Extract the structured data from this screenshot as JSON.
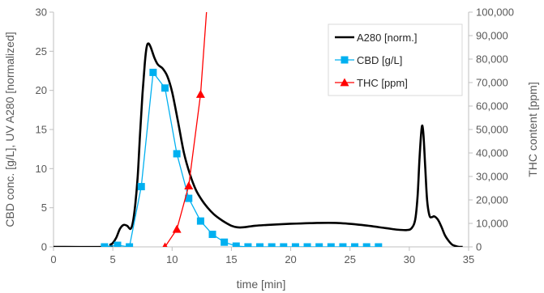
{
  "chart_data": {
    "type": "line",
    "xlabel": "time [min]",
    "ylabel": "CBD conc. [g/L], UV A280 [normalized]",
    "y2label": "THC content [ppm]",
    "xlim": [
      0,
      35
    ],
    "ylim": [
      0,
      30
    ],
    "y2lim": [
      0,
      100000
    ],
    "xticks": [
      "0",
      "5",
      "10",
      "15",
      "20",
      "25",
      "30",
      "35"
    ],
    "yticks": [
      "0",
      "5",
      "10",
      "15",
      "20",
      "25",
      "30"
    ],
    "y2ticks": [
      "0",
      "10,000",
      "20,000",
      "30,000",
      "40,000",
      "50,000",
      "60,000",
      "70,000",
      "80,000",
      "90,000",
      "100,000"
    ],
    "legend_position": "top-right",
    "grid": false,
    "series": [
      {
        "name": "A280 [norm.]",
        "axis": "left",
        "color": "#000000",
        "marker": "none",
        "x": [
          0,
          4.5,
          4.8,
          5.0,
          5.3,
          5.6,
          5.9,
          6.2,
          6.5,
          6.7,
          6.9,
          7.1,
          7.3,
          7.5,
          7.7,
          7.85,
          8.0,
          8.2,
          8.5,
          8.8,
          9.2,
          9.6,
          10.0,
          10.5,
          11.0,
          11.5,
          12.0,
          12.5,
          13.0,
          13.5,
          14.0,
          14.5,
          15.0,
          15.5,
          16.0,
          17.0,
          18.0,
          20.0,
          22.0,
          24.0,
          26.0,
          28.0,
          29.0,
          29.8,
          30.2,
          30.5,
          30.7,
          30.85,
          31.0,
          31.1,
          31.2,
          31.35,
          31.5,
          31.7,
          31.9,
          32.1,
          32.4,
          32.7,
          33.0,
          33.3,
          33.6,
          33.9,
          34.2,
          34.5
        ],
        "y": [
          0,
          0,
          0.3,
          0.5,
          1.2,
          2.3,
          2.8,
          2.7,
          2.3,
          3.2,
          5.5,
          9.0,
          14.5,
          19.5,
          23.5,
          25.5,
          26.0,
          25.5,
          24.2,
          23.3,
          22.8,
          21.8,
          19.8,
          16.0,
          12.0,
          9.3,
          7.3,
          6.0,
          5.0,
          4.2,
          3.6,
          3.1,
          2.7,
          2.5,
          2.5,
          2.7,
          2.8,
          2.95,
          3.05,
          3.05,
          2.8,
          2.4,
          2.2,
          2.15,
          2.4,
          3.5,
          6.5,
          11.0,
          14.5,
          15.5,
          14.2,
          10.0,
          6.0,
          4.0,
          3.8,
          3.9,
          3.5,
          2.6,
          1.5,
          0.8,
          0.3,
          0.1,
          0,
          0
        ]
      },
      {
        "name": "CBD [g/L]",
        "axis": "left",
        "color": "#00B0F0",
        "marker": "square",
        "x": [
          4.3,
          5.4,
          6.4,
          7.4,
          8.4,
          9.4,
          10.4,
          11.4,
          12.4,
          13.4,
          14.4,
          15.4,
          16.4,
          17.4,
          18.4,
          19.4,
          20.4,
          21.4,
          22.4,
          23.4,
          24.4,
          25.4,
          26.4,
          27.4
        ],
        "y": [
          0,
          0.2,
          0,
          7.7,
          22.3,
          20.3,
          11.9,
          6.2,
          3.3,
          1.6,
          0.6,
          0.1,
          0,
          0,
          0,
          0,
          0,
          0,
          0,
          0,
          0,
          0,
          0,
          0
        ]
      },
      {
        "name": "THC [ppm]",
        "axis": "right",
        "color": "#FF0000",
        "marker": "triangle",
        "x": [
          9.4,
          10.4,
          11.4,
          12.4,
          12.9
        ],
        "y": [
          0,
          7500,
          26000,
          65000,
          100000
        ]
      }
    ]
  }
}
